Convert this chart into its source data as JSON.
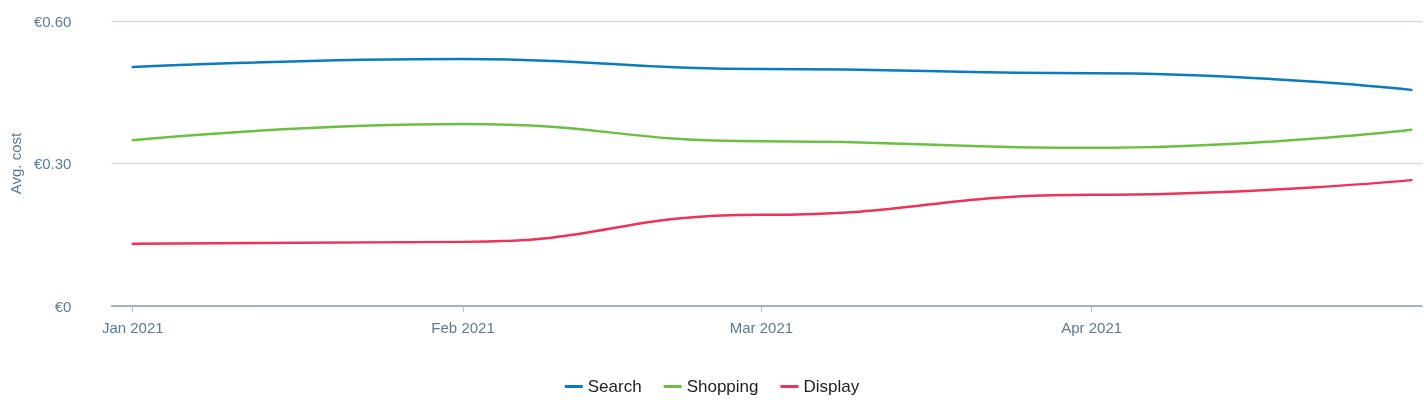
{
  "chart_data": {
    "type": "line",
    "ylabel": "Avg. cost",
    "x": [
      "2021-01-01",
      "2021-02-01",
      "2021-03-01",
      "2021-04-01",
      "2021-05-01"
    ],
    "xlim": [
      "2020-12-30",
      "2021-05-02"
    ],
    "xticks": [
      {
        "value": "2021-01-01",
        "label": "Jan 2021"
      },
      {
        "value": "2021-02-01",
        "label": "Feb 2021"
      },
      {
        "value": "2021-03-01",
        "label": "Mar 2021"
      },
      {
        "value": "2021-04-01",
        "label": "Apr 2021"
      }
    ],
    "ylim": [
      0,
      0.6
    ],
    "yticks": [
      {
        "value": 0,
        "label": "€0"
      },
      {
        "value": 0.3,
        "label": "€0.30"
      },
      {
        "value": 0.6,
        "label": "€0.60"
      }
    ],
    "series": [
      {
        "name": "Search",
        "color": "#0a7bbf",
        "values": [
          0.503,
          0.52,
          0.499,
          0.49,
          0.455
        ]
      },
      {
        "name": "Shopping",
        "color": "#6cbf45",
        "values": [
          0.349,
          0.383,
          0.347,
          0.333,
          0.371
        ]
      },
      {
        "name": "Display",
        "color": "#ea3458",
        "values": [
          0.131,
          0.135,
          0.192,
          0.234,
          0.265
        ]
      }
    ],
    "grid": "y",
    "legend": "bottom",
    "marker": "none",
    "line_style": "solid"
  }
}
